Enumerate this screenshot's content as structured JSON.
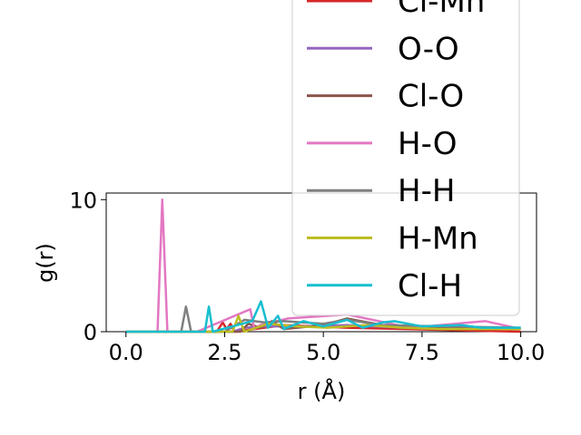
{
  "chart_data": {
    "type": "line",
    "xlabel": "r (Å)",
    "ylabel": "g(r)",
    "xlim": [
      -0.5,
      10.4
    ],
    "ylim": [
      0,
      10.5
    ],
    "xticks": [
      "0.0",
      "2.5",
      "5.0",
      "7.5",
      "10.0"
    ],
    "yticks": [
      "0",
      "10"
    ],
    "grid": false,
    "legend_position": "upper-right",
    "series": [
      {
        "name": "Cl-Mn",
        "color": "#d62728",
        "x": [
          0,
          2.3,
          2.45,
          2.55,
          2.65,
          2.75,
          4.0,
          5.6,
          10
        ],
        "y": [
          0,
          0,
          0.7,
          0.2,
          0.6,
          0,
          0.5,
          0.3,
          0
        ]
      },
      {
        "name": "O-O",
        "color": "#9467bd",
        "x": [
          0,
          2.7,
          3.0,
          3.6,
          4.5,
          5.6,
          7.0,
          8.5,
          10
        ],
        "y": [
          0,
          0,
          0.3,
          0.4,
          0.4,
          0.5,
          0.3,
          0.4,
          0.2
        ]
      },
      {
        "name": "Cl-O",
        "color": "#8c564b",
        "x": [
          0,
          2.9,
          3.1,
          3.4,
          3.7,
          4.0,
          5.0,
          5.6,
          6.5,
          8.0,
          10
        ],
        "y": [
          0,
          0,
          0.6,
          0.3,
          0.8,
          0.2,
          0.5,
          1.0,
          0.5,
          0.3,
          0.2
        ]
      },
      {
        "name": "H-O",
        "color": "#e377c2",
        "x": [
          0,
          0.8,
          0.92,
          1.05,
          1.8,
          3.15,
          3.25,
          3.4,
          4.1,
          5.6,
          7.2,
          9.1,
          10
        ],
        "y": [
          0,
          0,
          10.0,
          0,
          0,
          1.7,
          0.2,
          0.5,
          1.0,
          1.3,
          0.3,
          0.8,
          0.2
        ]
      },
      {
        "name": "H-H",
        "color": "#7f7f7f",
        "x": [
          0,
          1.4,
          1.52,
          1.65,
          2.5,
          3.0,
          3.5,
          4.0,
          5.0,
          5.6,
          6.5,
          8.0,
          10
        ],
        "y": [
          0,
          0,
          1.9,
          0,
          0,
          0.9,
          0.7,
          0.8,
          0.6,
          0.9,
          0.5,
          0.4,
          0.3
        ]
      },
      {
        "name": "H-Mn",
        "color": "#bcbd22",
        "x": [
          0,
          2.7,
          2.85,
          3.0,
          3.6,
          4.3,
          5.1,
          6.1,
          7.0,
          8.0,
          10
        ],
        "y": [
          0,
          0,
          1.2,
          0,
          0.6,
          0.4,
          0.3,
          0.5,
          0.3,
          0.2,
          0.2
        ]
      },
      {
        "name": "Cl-H",
        "color": "#17becf",
        "x": [
          0,
          2.0,
          2.1,
          2.2,
          3.2,
          3.42,
          3.6,
          3.85,
          4.0,
          4.5,
          5.0,
          5.6,
          6.0,
          6.5,
          6.8,
          7.5,
          8.5,
          9.0,
          10
        ],
        "y": [
          0,
          0,
          1.9,
          0,
          0.8,
          2.3,
          0.3,
          1.2,
          0.2,
          0.8,
          0.4,
          0.9,
          0.3,
          0.7,
          0.8,
          0.4,
          0.5,
          0.3,
          0.3
        ]
      }
    ]
  }
}
